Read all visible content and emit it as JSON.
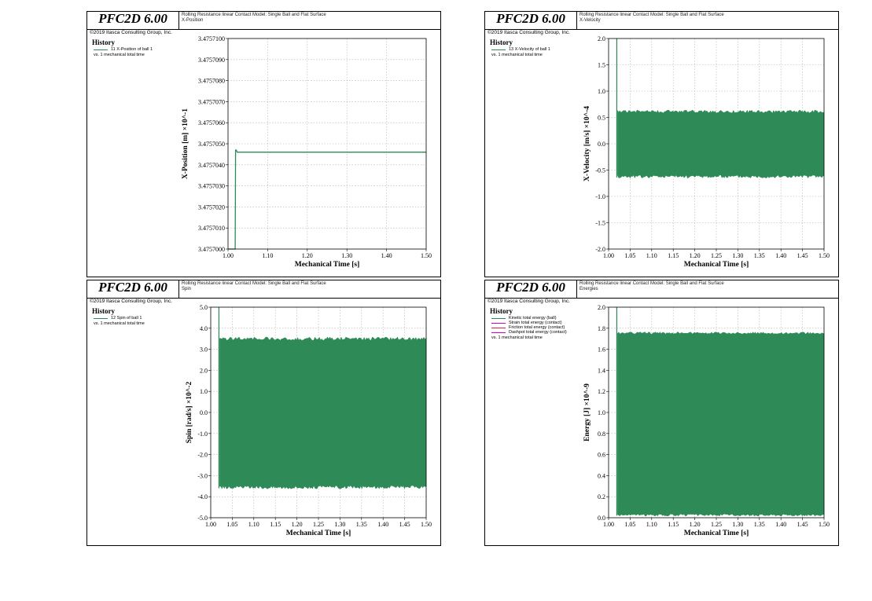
{
  "common": {
    "brand_title": "PFC2D 6.00",
    "brand_copyright": "©2019 Itasca Consulting Group, Inc.",
    "subtitle_line1": "Rolling Resistance linear Contact Model: Single Ball and Flat Surface",
    "legend_title": "History",
    "legend_vs": "vs. 1 mechanical total time"
  },
  "colors": {
    "series_green": "#2e8b57",
    "axis": "#000000",
    "grid": "#b0b0b0",
    "legend_magenta": "#cc00cc",
    "legend_red": "#dd2244"
  },
  "panels": [
    {
      "subtitle_line2": "X-Position",
      "legend_items": [
        {
          "label": "11 X-Position of ball 1",
          "color": "#2e8b57"
        }
      ],
      "chart_data": {
        "type": "line",
        "xlabel": "Mechanical Time [s]",
        "ylabel": "X-Position [m] ×10^-1",
        "xlim": [
          1.0,
          1.5
        ],
        "ylim": [
          3.4757,
          3.47571
        ],
        "xticks": [
          1.0,
          1.1,
          1.2,
          1.3,
          1.4,
          1.5
        ],
        "xtick_labels": [
          "1.00",
          "1.10",
          "1.20",
          "1.30",
          "1.40",
          "1.50"
        ],
        "yticks": [
          3.4757,
          3.475701,
          3.475702,
          3.475703,
          3.475704,
          3.475705,
          3.475706,
          3.475707,
          3.475708,
          3.475709,
          3.47571
        ],
        "ytick_labels": [
          "3.4757000",
          "3.4757010",
          "3.4757020",
          "3.4757030",
          "3.4757040",
          "3.4757050",
          "3.4757060",
          "3.4757070",
          "3.4757080",
          "3.4757090",
          "3.4757100"
        ],
        "grid": true,
        "series": [
          {
            "name": "11 X-Position of ball 1",
            "x": [
              1.0,
              1.018,
              1.019,
              1.021,
              1.023,
              1.5
            ],
            "y": [
              3.4757,
              3.4757,
              3.4757047,
              3.4757047,
              3.4757046,
              3.4757046
            ]
          }
        ]
      }
    },
    {
      "subtitle_line2": "X-Velocity",
      "legend_items": [
        {
          "label": "13 X-Velocity of ball 1",
          "color": "#2e8b57"
        }
      ],
      "chart_data": {
        "type": "area",
        "xlabel": "Mechanical Time [s]",
        "ylabel": "X-Velocity [m/s] ×10^-4",
        "xlim": [
          1.0,
          1.5
        ],
        "ylim": [
          -2.0,
          2.0
        ],
        "xticks": [
          1.0,
          1.05,
          1.1,
          1.15,
          1.2,
          1.25,
          1.3,
          1.35,
          1.4,
          1.45,
          1.5
        ],
        "xtick_labels": [
          "1.00",
          "1.05",
          "1.10",
          "1.15",
          "1.20",
          "1.25",
          "1.30",
          "1.35",
          "1.40",
          "1.45",
          "1.50"
        ],
        "yticks": [
          -2.0,
          -1.5,
          -1.0,
          -0.5,
          0.0,
          0.5,
          1.0,
          1.5,
          2.0
        ],
        "ytick_labels": [
          "-2.0",
          "-1.5",
          "-1.0",
          "-0.5",
          "0.0",
          "0.5",
          "1.0",
          "1.5",
          "2.0"
        ],
        "grid": true,
        "series": [
          {
            "name": "13 X-Velocity of ball 1",
            "oscillation": true,
            "start": 1.019,
            "spike": 2.0,
            "upper": 0.63,
            "lower": -0.64,
            "noise": 0.03
          }
        ]
      }
    },
    {
      "subtitle_line2": "Spin",
      "legend_items": [
        {
          "label": "12 Spin of ball 1",
          "color": "#2e8b57"
        }
      ],
      "chart_data": {
        "type": "area",
        "xlabel": "Mechanical Time [s]",
        "ylabel": "Spin [rad/s] ×10^-2",
        "xlim": [
          1.0,
          1.5
        ],
        "ylim": [
          -5.0,
          5.0
        ],
        "xticks": [
          1.0,
          1.05,
          1.1,
          1.15,
          1.2,
          1.25,
          1.3,
          1.35,
          1.4,
          1.45,
          1.5
        ],
        "xtick_labels": [
          "1.00",
          "1.05",
          "1.10",
          "1.15",
          "1.20",
          "1.25",
          "1.30",
          "1.35",
          "1.40",
          "1.45",
          "1.50"
        ],
        "yticks": [
          -5.0,
          -4.0,
          -3.0,
          -2.0,
          -1.0,
          0.0,
          1.0,
          2.0,
          3.0,
          4.0,
          5.0
        ],
        "ytick_labels": [
          "-5.0",
          "-4.0",
          "-3.0",
          "-2.0",
          "-1.0",
          "0.0",
          "1.0",
          "2.0",
          "3.0",
          "4.0",
          "5.0"
        ],
        "grid": true,
        "series": [
          {
            "name": "12 Spin of ball 1",
            "oscillation": true,
            "start": 1.019,
            "spike": 5.0,
            "upper": 3.55,
            "lower": -3.6,
            "noise": 0.08
          }
        ]
      }
    },
    {
      "subtitle_line2": "Energies",
      "legend_items": [
        {
          "label": "Kinetic total energy (ball)",
          "color": "#2e8b57"
        },
        {
          "label": "Strain total energy (contact)",
          "color": "#cc00cc"
        },
        {
          "label": "Friction total energy (contact)",
          "color": "#dd2244"
        },
        {
          "label": "Dashpot total energy (contact)",
          "color": "#cc00cc"
        }
      ],
      "chart_data": {
        "type": "area",
        "xlabel": "Mechanical Time [s]",
        "ylabel": "Energy [J] ×10^-9",
        "xlim": [
          1.0,
          1.5
        ],
        "ylim": [
          0.0,
          2.0
        ],
        "xticks": [
          1.0,
          1.05,
          1.1,
          1.15,
          1.2,
          1.25,
          1.3,
          1.35,
          1.4,
          1.45,
          1.5
        ],
        "xtick_labels": [
          "1.00",
          "1.05",
          "1.10",
          "1.15",
          "1.20",
          "1.25",
          "1.30",
          "1.35",
          "1.40",
          "1.45",
          "1.50"
        ],
        "yticks": [
          0.0,
          0.2,
          0.4,
          0.6,
          0.8,
          1.0,
          1.2,
          1.4,
          1.6,
          1.8,
          2.0
        ],
        "ytick_labels": [
          "0.0",
          "0.2",
          "0.4",
          "0.6",
          "0.8",
          "1.0",
          "1.2",
          "1.4",
          "1.6",
          "1.8",
          "2.0"
        ],
        "grid": true,
        "series": [
          {
            "name": "Kinetic total energy (ball)",
            "oscillation": true,
            "start": 1.019,
            "spike": 2.0,
            "upper": 1.76,
            "lower": 0.02,
            "noise": 0.01
          }
        ]
      }
    }
  ]
}
